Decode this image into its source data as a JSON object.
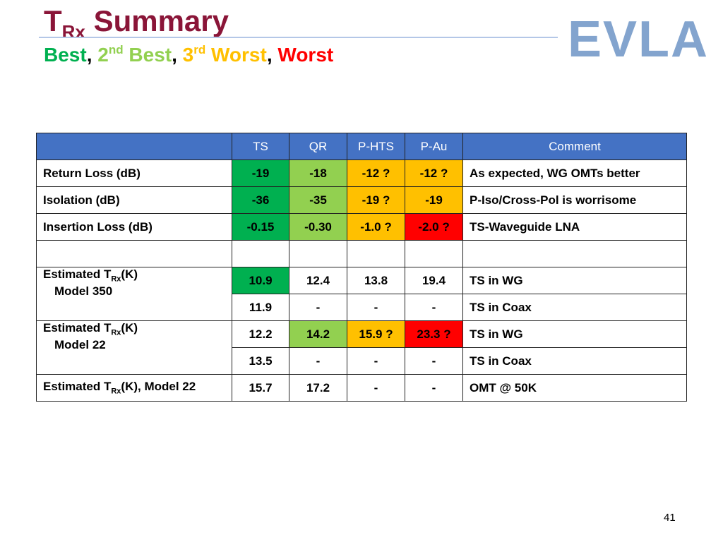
{
  "title": {
    "main": "T",
    "sub": "Rx",
    "rest": " Summary"
  },
  "legend": {
    "best": "Best",
    "sep1": ", ",
    "second_num": "2",
    "second_sup": "nd",
    "second_word": " Best",
    "sep2": ", ",
    "third_num": "3",
    "third_sup": "rd",
    "third_word": " Worst",
    "sep3": ", ",
    "worst": "Worst"
  },
  "logo": {
    "text": "EVLA"
  },
  "table": {
    "headers": [
      "",
      "TS",
      "QR",
      "P-HTS",
      "P-Au",
      "Comment"
    ],
    "return_loss": {
      "label": "Return Loss (dB)",
      "ts": "-19",
      "qr": "-18",
      "phts": "-12 ?",
      "pau": "-12 ?",
      "comment": "As expected, WG OMTs better"
    },
    "isolation": {
      "label": "Isolation (dB)",
      "ts": "-36",
      "qr": "-35",
      "phts": "-19 ?",
      "pau": "-19",
      "comment": "P-Iso/Cross-Pol is worrisome"
    },
    "insertion_loss": {
      "label": "Insertion Loss (dB)",
      "ts": "-0.15",
      "qr": "-0.30",
      "phts": "-1.0 ?",
      "pau": "-2.0 ?",
      "comment": "TS-Waveguide LNA"
    },
    "m350": {
      "label_pre": "Estimated T",
      "label_sub": "Rx",
      "label_post": "(K)",
      "label_line2": "Model 350",
      "wg": {
        "ts": "10.9",
        "qr": "12.4",
        "phts": "13.8",
        "pau": "19.4",
        "comment": "TS in WG"
      },
      "coax": {
        "ts": "11.9",
        "qr": "-",
        "phts": "-",
        "pau": "-",
        "comment": "TS in Coax"
      }
    },
    "m22": {
      "label_pre": "Estimated T",
      "label_sub": "Rx",
      "label_post": "(K)",
      "label_line2": "Model 22",
      "wg": {
        "ts": "12.2",
        "qr": "14.2",
        "phts": "15.9 ?",
        "pau": "23.3 ?",
        "comment": "TS in WG"
      },
      "coax": {
        "ts": "13.5",
        "qr": "-",
        "phts": "-",
        "pau": "-",
        "comment": "TS in Coax"
      }
    },
    "m22_omt": {
      "label_pre": "Estimated T",
      "label_sub": "Rx",
      "label_post": "(K), Model 22",
      "ts": "15.7",
      "qr": "17.2",
      "phts": "-",
      "pau": "-",
      "comment": "OMT @ 50K"
    }
  },
  "page_number": "41",
  "colors": {
    "title": "#8a1538",
    "header_bg": "#4472c4",
    "best": "#00b050",
    "second_best": "#92d050",
    "third_worst": "#ffc000",
    "worst": "#ff0000",
    "logo": "#6e95c6"
  }
}
